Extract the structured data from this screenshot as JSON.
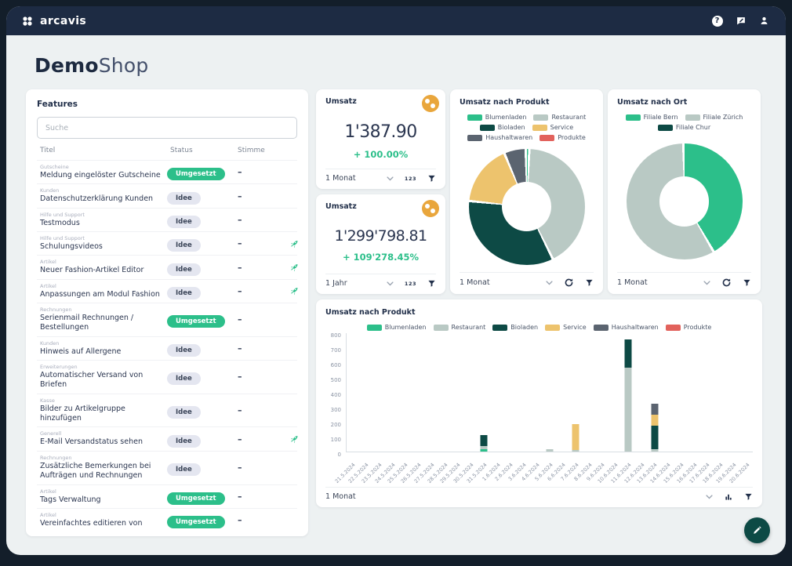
{
  "navbar": {
    "brand": "arcavis",
    "help_glyph": "?"
  },
  "page": {
    "title_primary": "Demo",
    "title_secondary": "Shop"
  },
  "features": {
    "title": "Features",
    "search_placeholder": "Suche",
    "columns": [
      "Titel",
      "Status",
      "Stimme"
    ],
    "rows": [
      {
        "category": "Gutscheine",
        "title": "Meldung eingelöster Gutscheine",
        "status": "Umgesetzt",
        "vote": "–",
        "rocket": false
      },
      {
        "category": "Kunden",
        "title": "Datenschutzerklärung Kunden",
        "status": "Idee",
        "vote": "–",
        "rocket": false
      },
      {
        "category": "Hilfe und Support",
        "title": "Testmodus",
        "status": "Idee",
        "vote": "–",
        "rocket": false
      },
      {
        "category": "Hilfe und Support",
        "title": "Schulungsvideos",
        "status": "Idee",
        "vote": "–",
        "rocket": true
      },
      {
        "category": "Artikel",
        "title": "Neuer Fashion-Artikel Editor",
        "status": "Idee",
        "vote": "–",
        "rocket": true
      },
      {
        "category": "Artikel",
        "title": "Anpassungen am Modul Fashion",
        "status": "Idee",
        "vote": "–",
        "rocket": true
      },
      {
        "category": "Rechnungen",
        "title": "Serienmail Rechnungen / Bestellungen",
        "status": "Umgesetzt",
        "vote": "–",
        "rocket": false
      },
      {
        "category": "Kunden",
        "title": "Hinweis auf Allergene",
        "status": "Idee",
        "vote": "–",
        "rocket": false
      },
      {
        "category": "Erweiterungen",
        "title": "Automatischer Versand von Briefen",
        "status": "Idee",
        "vote": "–",
        "rocket": false
      },
      {
        "category": "Kasse",
        "title": "Bilder zu Artikelgruppe hinzufügen",
        "status": "Idee",
        "vote": "–",
        "rocket": false
      },
      {
        "category": "Generell",
        "title": "E-Mail Versandstatus sehen",
        "status": "Idee",
        "vote": "–",
        "rocket": true
      },
      {
        "category": "Rechnungen",
        "title": "Zusätzliche Bemerkungen bei Aufträgen und Rechnungen",
        "status": "Idee",
        "vote": "–",
        "rocket": false
      },
      {
        "category": "Artikel",
        "title": "Tags Verwaltung",
        "status": "Umgesetzt",
        "vote": "–",
        "rocket": false
      },
      {
        "category": "Artikel",
        "title": "Vereinfachtes editieren von",
        "status": "Umgesetzt",
        "vote": "–",
        "rocket": false
      }
    ]
  },
  "kpis": [
    {
      "title": "Umsatz",
      "value": "1'387.90",
      "change": "+ 100.00%",
      "period": "1 Monat",
      "numeric_icon": "123"
    },
    {
      "title": "Umsatz",
      "value": "1'299'798.81",
      "change": "+ 109'278.45%",
      "period": "1 Jahr",
      "numeric_icon": "123"
    }
  ],
  "colors": {
    "accent_green": "#2cbf8a",
    "restaurant_gray": "#b9c9c4",
    "dark_teal": "#0d4a45",
    "service_amber": "#edc36d",
    "haushalt_gray": "#5b6470",
    "produkte_red": "#e2625c",
    "navbar_navy": "#1d2b43",
    "kpi_badge_orange": "#e9a63c"
  },
  "chart_data": [
    {
      "type": "pie",
      "title": "Umsatz nach Produkt",
      "labels": [
        "Blumenladen",
        "Restaurant",
        "Bioladen",
        "Service",
        "Haushaltwaren",
        "Produkte"
      ],
      "values": [
        1,
        42,
        34,
        17,
        6,
        0
      ],
      "colors": [
        "#2cbf8a",
        "#b9c9c4",
        "#0d4a45",
        "#edc36d",
        "#5b6470",
        "#e2625c"
      ],
      "unit": "percent_share",
      "period": "1 Monat",
      "legend_position": "top",
      "donut": true
    },
    {
      "type": "pie",
      "title": "Umsatz nach Ort",
      "labels": [
        "Filiale Bern",
        "Filiale Zürich",
        "Filiale Chur"
      ],
      "values": [
        42,
        58,
        0
      ],
      "colors": [
        "#2cbf8a",
        "#b9c9c4",
        "#0d4a45"
      ],
      "unit": "percent_share",
      "period": "1 Monat",
      "legend_position": "top",
      "donut": true
    },
    {
      "type": "bar",
      "stacked": true,
      "title": "Umsatz nach Produkt",
      "period": "1 Monat",
      "ylim": [
        0,
        800
      ],
      "ytick_step": 100,
      "grid": false,
      "legend_position": "top",
      "categories": [
        "21.5.2024",
        "22.5.2024",
        "23.5.2024",
        "24.5.2024",
        "25.5.2024",
        "26.5.2024",
        "27.5.2024",
        "28.5.2024",
        "29.5.2024",
        "30.5.2024",
        "31.5.2024",
        "1.6.2024",
        "2.6.2024",
        "3.6.2024",
        "4.6.2024",
        "5.6.2024",
        "6.6.2024",
        "7.6.2024",
        "8.6.2024",
        "9.6.2024",
        "10.6.2024",
        "11.6.2024",
        "12.6.2024",
        "13.6.2024",
        "14.6.2024",
        "15.6.2024",
        "16.6.2024",
        "17.6.2024",
        "18.6.2024",
        "19.6.2024",
        "20.6.2024"
      ],
      "series": [
        {
          "name": "Blumenladen",
          "color": "#2cbf8a",
          "values": [
            0,
            0,
            0,
            0,
            0,
            0,
            0,
            0,
            0,
            0,
            15,
            0,
            0,
            0,
            0,
            0,
            0,
            0,
            0,
            0,
            0,
            0,
            0,
            0,
            0,
            0,
            0,
            0,
            0,
            0,
            0
          ]
        },
        {
          "name": "Restaurant",
          "color": "#b9c9c4",
          "values": [
            0,
            0,
            0,
            0,
            0,
            0,
            0,
            0,
            0,
            0,
            20,
            0,
            0,
            0,
            0,
            15,
            0,
            10,
            0,
            0,
            0,
            565,
            0,
            15,
            0,
            0,
            0,
            0,
            0,
            0,
            0
          ]
        },
        {
          "name": "Bioladen",
          "color": "#0d4a45",
          "values": [
            0,
            0,
            0,
            0,
            0,
            0,
            0,
            0,
            0,
            0,
            75,
            0,
            0,
            0,
            0,
            0,
            0,
            0,
            0,
            0,
            0,
            190,
            0,
            160,
            0,
            0,
            0,
            0,
            0,
            0,
            0
          ]
        },
        {
          "name": "Service",
          "color": "#edc36d",
          "values": [
            0,
            0,
            0,
            0,
            0,
            0,
            0,
            0,
            0,
            0,
            0,
            0,
            0,
            0,
            0,
            0,
            0,
            175,
            0,
            0,
            0,
            0,
            0,
            75,
            0,
            0,
            0,
            0,
            0,
            0,
            0
          ]
        },
        {
          "name": "Haushaltwaren",
          "color": "#5b6470",
          "values": [
            0,
            0,
            0,
            0,
            0,
            0,
            0,
            0,
            0,
            0,
            0,
            0,
            0,
            0,
            0,
            0,
            0,
            0,
            0,
            0,
            0,
            0,
            0,
            70,
            0,
            0,
            0,
            0,
            0,
            0,
            0
          ]
        },
        {
          "name": "Produkte",
          "color": "#e2625c",
          "values": [
            0,
            0,
            0,
            0,
            0,
            0,
            0,
            0,
            0,
            0,
            0,
            0,
            0,
            0,
            0,
            0,
            0,
            0,
            0,
            0,
            0,
            0,
            0,
            0,
            0,
            0,
            0,
            0,
            0,
            0,
            0
          ]
        }
      ]
    }
  ]
}
